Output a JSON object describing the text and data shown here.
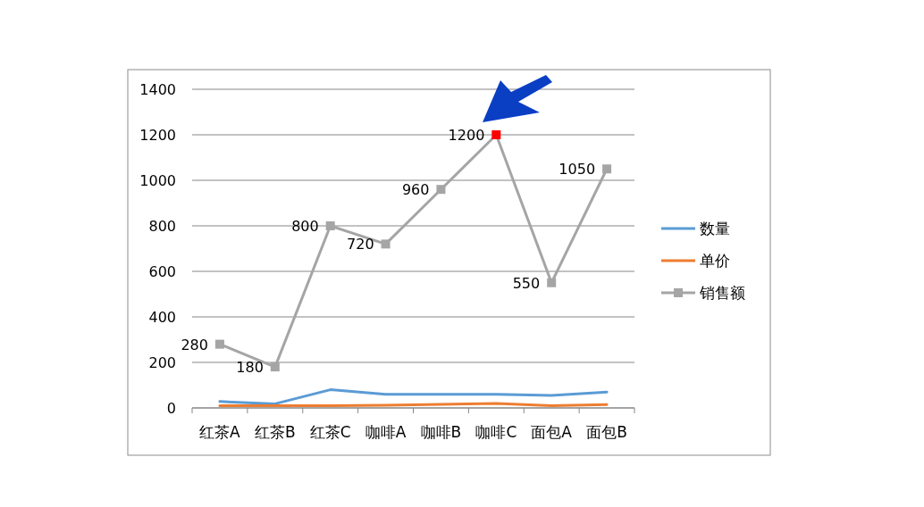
{
  "chart_data": {
    "type": "line",
    "categories": [
      "红茶A",
      "红茶B",
      "红茶C",
      "咖啡A",
      "咖啡B",
      "咖啡C",
      "面包A",
      "面包B"
    ],
    "series": [
      {
        "name": "数量",
        "color": "#5b9bd5",
        "values": [
          28,
          18,
          80,
          60,
          60,
          60,
          55,
          70
        ]
      },
      {
        "name": "单价",
        "color": "#ed7d31",
        "values": [
          10,
          10,
          10,
          12,
          16,
          20,
          10,
          15
        ]
      },
      {
        "name": "销售额",
        "color": "#a5a5a5",
        "marker": "square",
        "data_labels": true,
        "colors": [
          "#a5a5a5",
          "#a5a5a5",
          "#a5a5a5",
          "#a5a5a5",
          "#a5a5a5",
          "#ff0000",
          "#a5a5a5",
          "#a5a5a5"
        ],
        "values": [
          280,
          180,
          800,
          720,
          960,
          1200,
          550,
          1050
        ]
      }
    ],
    "ylim": [
      0,
      1400
    ],
    "yticks": [
      0,
      200,
      400,
      600,
      800,
      1000,
      1200,
      1400
    ],
    "grid": "y",
    "legend": "right"
  }
}
